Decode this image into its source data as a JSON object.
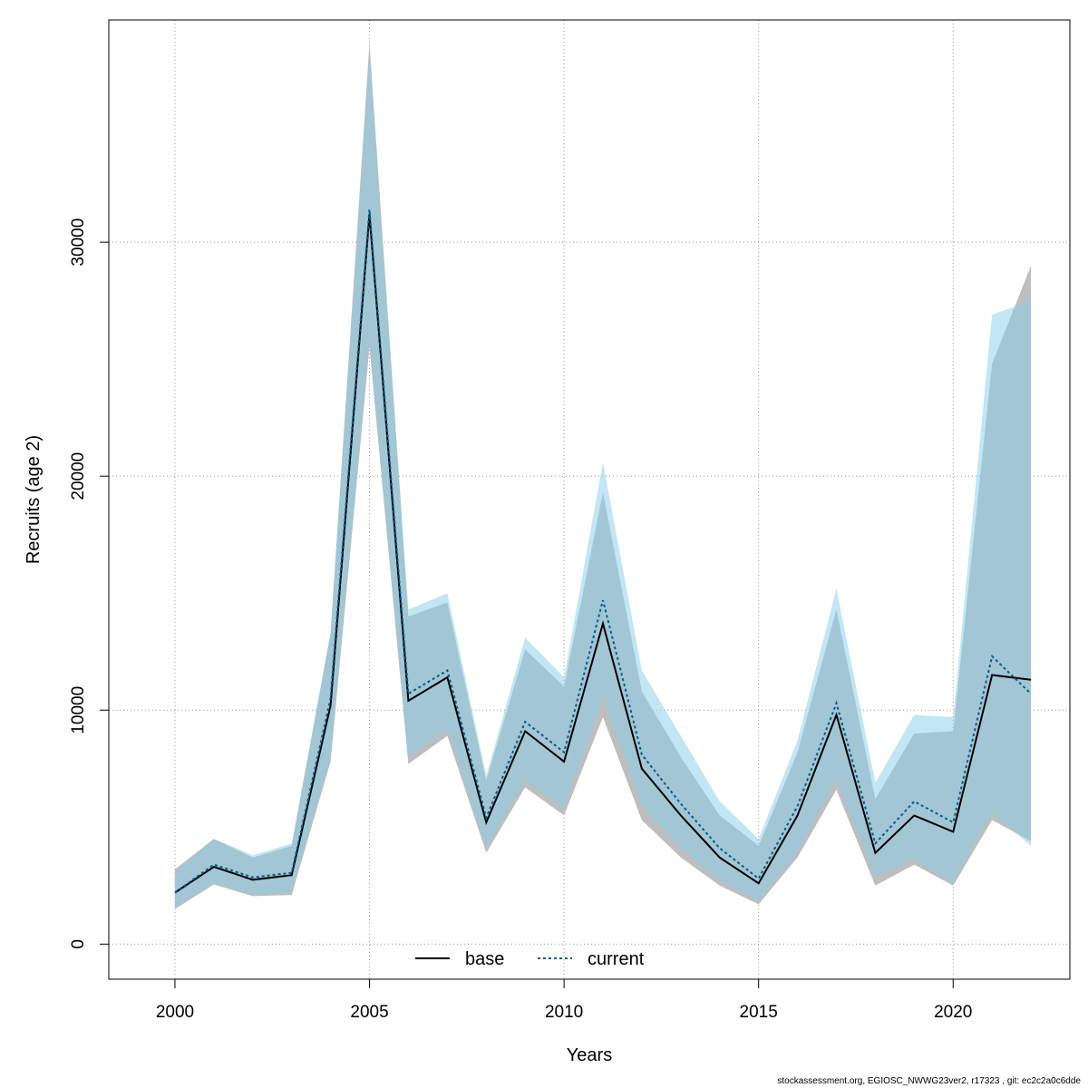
{
  "footer": "stockassessment.org, EGIOSC_NWWG23ver2, r17323 , git: ec2c2a0c6dde",
  "chart_data": {
    "type": "line",
    "xlabel": "Years",
    "ylabel": "Recruits (age 2)",
    "xlim": [
      1998.3,
      2023
    ],
    "ylim": [
      -1500,
      39500
    ],
    "x_ticks": [
      2000,
      2005,
      2010,
      2015,
      2020
    ],
    "y_ticks": [
      0,
      10000,
      20000,
      30000
    ],
    "grid": true,
    "legend_position": "bottom-center",
    "x": [
      2000,
      2001,
      2002,
      2003,
      2004,
      2005,
      2006,
      2007,
      2008,
      2009,
      2010,
      2011,
      2012,
      2013,
      2014,
      2015,
      2016,
      2017,
      2018,
      2019,
      2020,
      2021,
      2022
    ],
    "series": [
      {
        "name": "base",
        "line_style": "solid",
        "line_color": "#000000",
        "band_color": "#bebebe",
        "values": [
          2200,
          3300,
          2750,
          2950,
          10200,
          31200,
          10400,
          11400,
          5200,
          9100,
          7800,
          13700,
          7500,
          5500,
          3700,
          2600,
          5500,
          9800,
          3900,
          5500,
          4800,
          11500,
          11300
        ],
        "lower": [
          1500,
          2550,
          2050,
          2100,
          7800,
          25500,
          7700,
          8900,
          3900,
          6700,
          5500,
          9700,
          5300,
          3700,
          2500,
          1700,
          3700,
          6600,
          2500,
          3400,
          2500,
          5300,
          4400
        ],
        "upper": [
          3200,
          4500,
          3700,
          4200,
          13300,
          38500,
          14000,
          14600,
          7000,
          12600,
          11000,
          19300,
          10800,
          8000,
          5500,
          4200,
          8200,
          14300,
          6200,
          9000,
          9100,
          24800,
          29000
        ]
      },
      {
        "name": "current",
        "line_style": "dotted",
        "line_color": "#005c8a",
        "band_color": "#87ceeb",
        "values": [
          2200,
          3400,
          2850,
          3050,
          10500,
          31400,
          10700,
          11700,
          5400,
          9500,
          8200,
          14700,
          8100,
          6000,
          4100,
          2800,
          5900,
          10300,
          4300,
          6100,
          5200,
          12300,
          10700
        ],
        "lower": [
          1550,
          2600,
          2100,
          2200,
          8000,
          25800,
          8000,
          9200,
          4100,
          7000,
          5800,
          10500,
          5900,
          4100,
          2700,
          1850,
          3900,
          7000,
          2900,
          3600,
          2600,
          5600,
          4200
        ],
        "upper": [
          3100,
          4500,
          3800,
          4300,
          13300,
          38000,
          14300,
          15000,
          7200,
          13100,
          11400,
          20600,
          11700,
          8900,
          6100,
          4500,
          8700,
          15200,
          6900,
          9800,
          9700,
          26900,
          27500
        ]
      }
    ]
  }
}
